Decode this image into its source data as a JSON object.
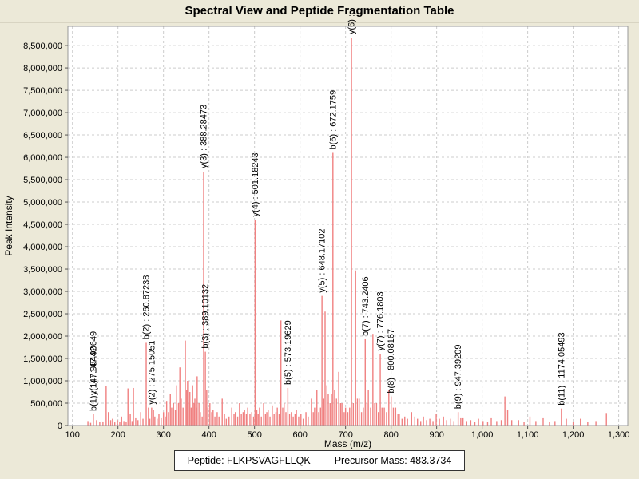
{
  "title": "Spectral View and Peptide Fragmentation Table",
  "footer": {
    "peptide": "Peptide: FLKPSVAGFLLQK",
    "precursor": "Precursor Mass: 483.3734"
  },
  "colors": {
    "background": "#ece9d8",
    "plot_bg": "#ffffff",
    "grid": "#cccccc",
    "border": "#999999",
    "axis": "#555555",
    "peak": "#f08080",
    "text": "#000000"
  },
  "chart_data": {
    "type": "bar",
    "title": "Spectral View and Peptide Fragmentation Table",
    "xlabel": "Mass (m/z)",
    "ylabel": "Peak Intensity",
    "xlim": [
      90,
      1320
    ],
    "ylim": [
      0,
      8930000
    ],
    "grid": true,
    "x_ticks": [
      100,
      200,
      300,
      400,
      500,
      600,
      700,
      800,
      900,
      1000,
      1100,
      1200,
      1300
    ],
    "y_ticks": [
      0,
      500000,
      1000000,
      1500000,
      2000000,
      2500000,
      3000000,
      3500000,
      4000000,
      4500000,
      5000000,
      5500000,
      6000000,
      6500000,
      7000000,
      7500000,
      8000000,
      8500000
    ],
    "peaks": [
      [
        134,
        100000
      ],
      [
        140,
        60000
      ],
      [
        146,
        250000
      ],
      [
        153,
        120000
      ],
      [
        160,
        80000
      ],
      [
        167,
        90000
      ],
      [
        174,
        880000
      ],
      [
        179,
        300000
      ],
      [
        184,
        120000
      ],
      [
        188,
        150000
      ],
      [
        193,
        70000
      ],
      [
        199,
        120000
      ],
      [
        204,
        90000
      ],
      [
        208,
        200000
      ],
      [
        213,
        100000
      ],
      [
        218,
        80000
      ],
      [
        222,
        830000
      ],
      [
        227,
        250000
      ],
      [
        231,
        100000
      ],
      [
        234,
        840000
      ],
      [
        239,
        180000
      ],
      [
        244,
        120000
      ],
      [
        250,
        300000
      ],
      [
        255,
        150000
      ],
      [
        262,
        1850000
      ],
      [
        267,
        400000
      ],
      [
        270,
        150000
      ],
      [
        274,
        400000
      ],
      [
        278,
        350000
      ],
      [
        281,
        200000
      ],
      [
        286,
        150000
      ],
      [
        290,
        250000
      ],
      [
        295,
        180000
      ],
      [
        300,
        300000
      ],
      [
        304,
        200000
      ],
      [
        307,
        550000
      ],
      [
        311,
        300000
      ],
      [
        315,
        700000
      ],
      [
        318,
        400000
      ],
      [
        322,
        500000
      ],
      [
        326,
        350000
      ],
      [
        329,
        900000
      ],
      [
        333,
        500000
      ],
      [
        336,
        1300000
      ],
      [
        339,
        600000
      ],
      [
        343,
        400000
      ],
      [
        348,
        1900000
      ],
      [
        351,
        800000
      ],
      [
        353,
        1000000
      ],
      [
        356,
        500000
      ],
      [
        358,
        750000
      ],
      [
        361,
        400000
      ],
      [
        364,
        900000
      ],
      [
        367,
        500000
      ],
      [
        369,
        600000
      ],
      [
        372,
        400000
      ],
      [
        374,
        1100000
      ],
      [
        378,
        500000
      ],
      [
        381,
        300000
      ],
      [
        385,
        200000
      ],
      [
        388.3,
        5680000
      ],
      [
        392,
        1650000
      ],
      [
        395,
        800000
      ],
      [
        398,
        400000
      ],
      [
        402,
        500000
      ],
      [
        406,
        300000
      ],
      [
        409,
        350000
      ],
      [
        413,
        200000
      ],
      [
        418,
        300000
      ],
      [
        422,
        200000
      ],
      [
        429,
        600000
      ],
      [
        434,
        250000
      ],
      [
        438,
        150000
      ],
      [
        444,
        200000
      ],
      [
        450,
        400000
      ],
      [
        455,
        250000
      ],
      [
        458,
        300000
      ],
      [
        463,
        200000
      ],
      [
        467,
        500000
      ],
      [
        471,
        250000
      ],
      [
        475,
        300000
      ],
      [
        478,
        350000
      ],
      [
        482,
        250000
      ],
      [
        485,
        400000
      ],
      [
        490,
        250000
      ],
      [
        494,
        300000
      ],
      [
        498,
        200000
      ],
      [
        501.2,
        4600000
      ],
      [
        505,
        350000
      ],
      [
        508,
        250000
      ],
      [
        511,
        400000
      ],
      [
        515,
        200000
      ],
      [
        520,
        500000
      ],
      [
        524,
        250000
      ],
      [
        527,
        300000
      ],
      [
        530,
        350000
      ],
      [
        534,
        200000
      ],
      [
        539,
        450000
      ],
      [
        543,
        250000
      ],
      [
        547,
        300000
      ],
      [
        550,
        400000
      ],
      [
        554,
        250000
      ],
      [
        558,
        2350000
      ],
      [
        562,
        400000
      ],
      [
        565,
        500000
      ],
      [
        569,
        300000
      ],
      [
        573.2,
        840000
      ],
      [
        577,
        250000
      ],
      [
        581,
        300000
      ],
      [
        585,
        200000
      ],
      [
        589,
        250000
      ],
      [
        592,
        350000
      ],
      [
        597,
        200000
      ],
      [
        602,
        250000
      ],
      [
        607,
        150000
      ],
      [
        613,
        300000
      ],
      [
        618,
        200000
      ],
      [
        625,
        600000
      ],
      [
        629,
        300000
      ],
      [
        632,
        400000
      ],
      [
        637,
        800000
      ],
      [
        641,
        300000
      ],
      [
        645,
        400000
      ],
      [
        648.2,
        2900000
      ],
      [
        652,
        600000
      ],
      [
        655,
        2550000
      ],
      [
        659,
        900000
      ],
      [
        662,
        700000
      ],
      [
        666,
        500000
      ],
      [
        669,
        700000
      ],
      [
        672.2,
        6100000
      ],
      [
        676,
        800000
      ],
      [
        680,
        600000
      ],
      [
        685,
        1200000
      ],
      [
        689,
        500000
      ],
      [
        692,
        500000
      ],
      [
        697,
        300000
      ],
      [
        700,
        400000
      ],
      [
        705,
        300000
      ],
      [
        709,
        400000
      ],
      [
        713,
        8680000
      ],
      [
        717,
        500000
      ],
      [
        722,
        3470000
      ],
      [
        726,
        600000
      ],
      [
        730,
        600000
      ],
      [
        735,
        300000
      ],
      [
        739,
        400000
      ],
      [
        743.2,
        1930000
      ],
      [
        747,
        500000
      ],
      [
        750,
        800000
      ],
      [
        755,
        400000
      ],
      [
        760,
        2050000
      ],
      [
        764,
        500000
      ],
      [
        768,
        500000
      ],
      [
        772,
        300000
      ],
      [
        776.2,
        1600000
      ],
      [
        780,
        400000
      ],
      [
        785,
        400000
      ],
      [
        790,
        300000
      ],
      [
        795,
        800000
      ],
      [
        800.1,
        650000
      ],
      [
        805,
        400000
      ],
      [
        810,
        400000
      ],
      [
        815,
        250000
      ],
      [
        818,
        250000
      ],
      [
        824,
        150000
      ],
      [
        830,
        200000
      ],
      [
        836,
        150000
      ],
      [
        845,
        300000
      ],
      [
        852,
        200000
      ],
      [
        858,
        150000
      ],
      [
        865,
        100000
      ],
      [
        871,
        200000
      ],
      [
        878,
        120000
      ],
      [
        885,
        150000
      ],
      [
        892,
        100000
      ],
      [
        899,
        250000
      ],
      [
        906,
        150000
      ],
      [
        915,
        200000
      ],
      [
        922,
        120000
      ],
      [
        930,
        150000
      ],
      [
        938,
        100000
      ],
      [
        947.4,
        300000
      ],
      [
        953,
        180000
      ],
      [
        958,
        180000
      ],
      [
        966,
        100000
      ],
      [
        975,
        120000
      ],
      [
        984,
        80000
      ],
      [
        992,
        150000
      ],
      [
        1002,
        100000
      ],
      [
        1012,
        80000
      ],
      [
        1020,
        180000
      ],
      [
        1032,
        100000
      ],
      [
        1042,
        120000
      ],
      [
        1050,
        650000
      ],
      [
        1056,
        350000
      ],
      [
        1065,
        120000
      ],
      [
        1080,
        120000
      ],
      [
        1092,
        80000
      ],
      [
        1105,
        200000
      ],
      [
        1118,
        100000
      ],
      [
        1134,
        180000
      ],
      [
        1148,
        80000
      ],
      [
        1160,
        100000
      ],
      [
        1174.1,
        380000
      ],
      [
        1185,
        150000
      ],
      [
        1200,
        80000
      ],
      [
        1216,
        150000
      ],
      [
        1232,
        80000
      ],
      [
        1250,
        100000
      ],
      [
        1273,
        280000
      ]
    ],
    "annotations": [
      {
        "text": "b(1) : 147.98442",
        "mz": 146,
        "intensity": 250000
      },
      {
        "text": "y(1) : 147.90649",
        "mz": 146,
        "intensity": 250000,
        "dy": -20
      },
      {
        "text": "b(2) : 260.87238",
        "mz": 262,
        "intensity": 1850000
      },
      {
        "text": "y(2) : 275.15051",
        "mz": 274,
        "intensity": 400000
      },
      {
        "text": "y(3) : 388.28473",
        "mz": 388.3,
        "intensity": 5680000
      },
      {
        "text": "b(3) : 389.10132",
        "mz": 392,
        "intensity": 1650000
      },
      {
        "text": "y(4) : 501.18243",
        "mz": 501.2,
        "intensity": 4600000
      },
      {
        "text": "b(5) : 573.19629",
        "mz": 573.2,
        "intensity": 840000
      },
      {
        "text": "y(5) : 648.17102",
        "mz": 648.2,
        "intensity": 2900000
      },
      {
        "text": "b(6) : 672.1759",
        "mz": 672.2,
        "intensity": 6100000
      },
      {
        "text": "y(6) :",
        "mz": 713,
        "intensity": 8680000
      },
      {
        "text": "b(7) : 743.2406",
        "mz": 743.2,
        "intensity": 1930000
      },
      {
        "text": "y(7) : 776.1803",
        "mz": 776.2,
        "intensity": 1600000
      },
      {
        "text": "b(8) : 800.08167",
        "mz": 800.1,
        "intensity": 650000
      },
      {
        "text": "b(9) : 947.39209",
        "mz": 947.4,
        "intensity": 300000
      },
      {
        "text": "b(11) : 1174.05493",
        "mz": 1174.1,
        "intensity": 380000
      }
    ]
  }
}
